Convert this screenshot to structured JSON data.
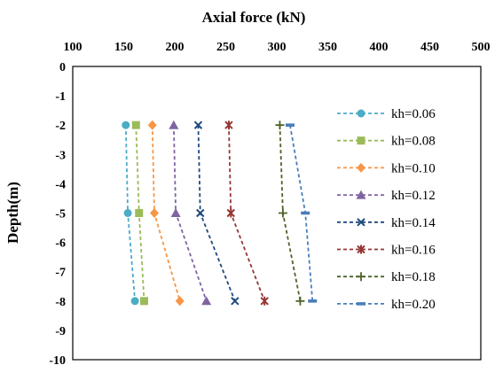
{
  "chart_data": {
    "type": "line",
    "xlabel": "Axial force (kN)",
    "ylabel": "Depth(m)",
    "xlim": [
      100,
      500
    ],
    "ylim": [
      -10,
      0
    ],
    "x_ticks": [
      100,
      150,
      200,
      250,
      300,
      350,
      400,
      450,
      500
    ],
    "y_ticks": [
      0,
      -1,
      -2,
      -3,
      -4,
      -5,
      -6,
      -7,
      -8,
      -9,
      -10
    ],
    "x_axis_position": "top",
    "grid": false,
    "legend_position": "right",
    "series": [
      {
        "name": "kh=0.06",
        "color": "#4bacc6",
        "marker": "circle",
        "points": [
          {
            "x": 152,
            "y": -2
          },
          {
            "x": 154,
            "y": -5
          },
          {
            "x": 161,
            "y": -8
          }
        ]
      },
      {
        "name": "kh=0.08",
        "color": "#9bbb59",
        "marker": "square",
        "points": [
          {
            "x": 162,
            "y": -2
          },
          {
            "x": 165,
            "y": -5
          },
          {
            "x": 170,
            "y": -8
          }
        ]
      },
      {
        "name": "kh=0.10",
        "color": "#f79646",
        "marker": "diamond",
        "points": [
          {
            "x": 178,
            "y": -2
          },
          {
            "x": 180,
            "y": -5
          },
          {
            "x": 205,
            "y": -8
          }
        ]
      },
      {
        "name": "kh=0.12",
        "color": "#8064a2",
        "marker": "triangle",
        "points": [
          {
            "x": 199,
            "y": -2
          },
          {
            "x": 201,
            "y": -5
          },
          {
            "x": 231,
            "y": -8
          }
        ]
      },
      {
        "name": "kh=0.14",
        "color": "#1f497d",
        "marker": "x",
        "points": [
          {
            "x": 223,
            "y": -2
          },
          {
            "x": 225,
            "y": -5
          },
          {
            "x": 259,
            "y": -8
          }
        ]
      },
      {
        "name": "kh=0.16",
        "color": "#953735",
        "marker": "star",
        "points": [
          {
            "x": 253,
            "y": -2
          },
          {
            "x": 255,
            "y": -5
          },
          {
            "x": 288,
            "y": -8
          }
        ]
      },
      {
        "name": "kh=0.18",
        "color": "#4f6228",
        "marker": "plus",
        "points": [
          {
            "x": 303,
            "y": -2
          },
          {
            "x": 306,
            "y": -5
          },
          {
            "x": 323,
            "y": -8
          }
        ]
      },
      {
        "name": "kh=0.20",
        "color": "#4a7ebb",
        "marker": "dash",
        "points": [
          {
            "x": 313,
            "y": -2
          },
          {
            "x": 328,
            "y": -5
          },
          {
            "x": 335,
            "y": -8
          }
        ]
      }
    ]
  }
}
